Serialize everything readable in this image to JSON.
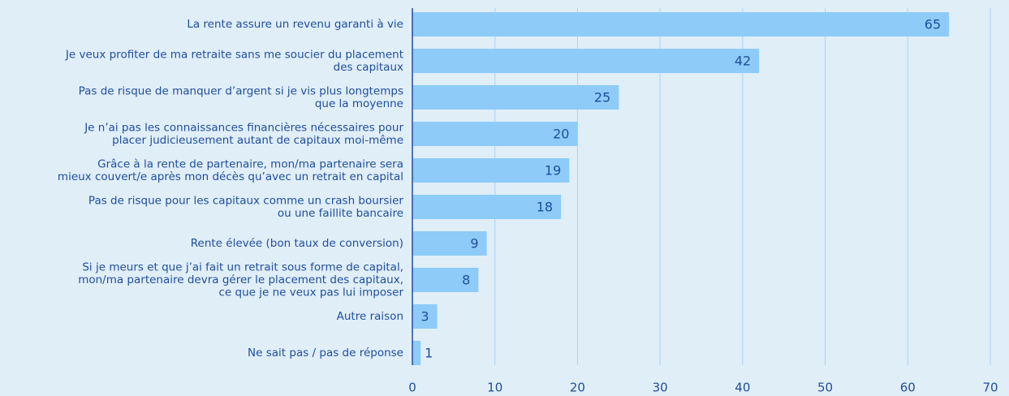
{
  "chart_data": {
    "type": "barh",
    "categories": [
      [
        "La rente assure un revenu garanti à vie"
      ],
      [
        "Je veux profiter de ma retraite sans me soucier du placement",
        "des capitaux"
      ],
      [
        "Pas de risque de manquer d’argent si je vis plus longtemps",
        "que la moyenne"
      ],
      [
        "Je n’ai pas les connaissances financières nécessaires pour",
        "placer judicieusement autant de capitaux moi-même"
      ],
      [
        "Grâce à la rente de partenaire, mon/ma partenaire sera",
        "mieux couvert/e après mon décès qu’avec un retrait en capital"
      ],
      [
        "Pas de risque pour les capitaux comme un crash boursier",
        "ou une faillite bancaire"
      ],
      [
        "Rente élevée (bon taux de conversion)"
      ],
      [
        "Si je meurs et que j’ai fait un retrait sous forme de capital,",
        "mon/ma partenaire devra gérer le placement des capitaux,",
        "ce que je ne veux pas lui imposer"
      ],
      [
        "Autre raison"
      ],
      [
        "Ne sait pas / pas de réponse"
      ]
    ],
    "values": [
      65,
      42,
      25,
      20,
      19,
      18,
      9,
      8,
      3,
      1
    ],
    "color": "#8ecbf8",
    "xlim": [
      0,
      70
    ],
    "xticks": [
      0,
      10,
      20,
      30,
      40,
      50,
      60,
      70
    ],
    "grid": true
  }
}
